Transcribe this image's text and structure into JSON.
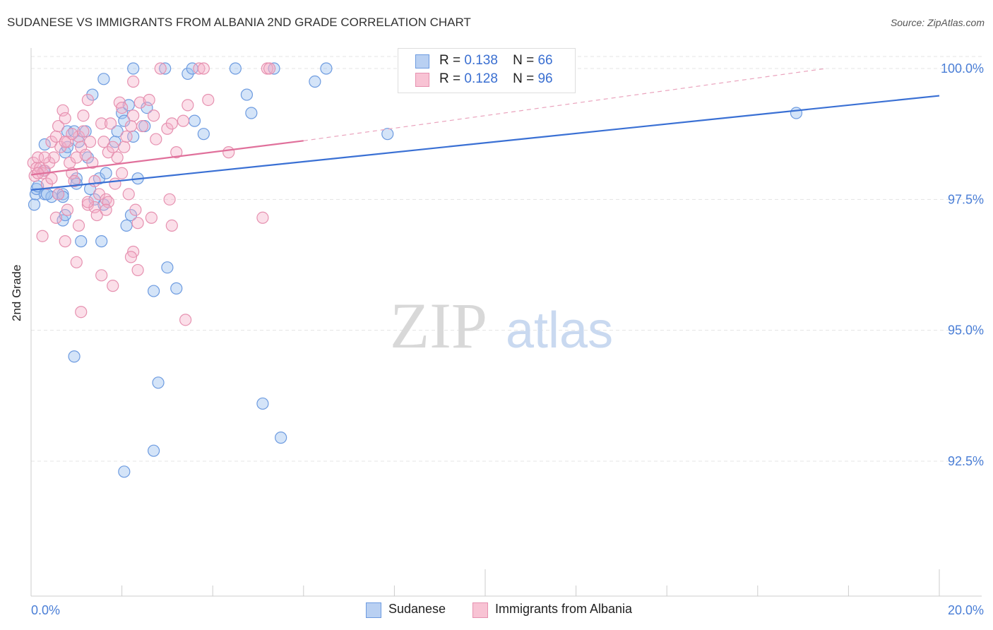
{
  "title": "SUDANESE VS IMMIGRANTS FROM ALBANIA 2ND GRADE CORRELATION CHART",
  "source": "Source: ZipAtlas.com",
  "watermark": {
    "zip": "ZIP",
    "atlas": "atlas"
  },
  "stats": [
    {
      "r_label": "R =",
      "r_value": "0.138",
      "n_label": "N =",
      "n_value": "66",
      "fill": "#b9d0f2",
      "stroke": "#6d9be0"
    },
    {
      "r_label": "R =",
      "r_value": "0.128",
      "n_label": "N =",
      "n_value": "96",
      "fill": "#f8c3d4",
      "stroke": "#e691b0"
    }
  ],
  "legend": [
    {
      "label": "Sudanese",
      "fill": "#b9d0f2",
      "stroke": "#6d9be0"
    },
    {
      "label": "Immigrants from Albania",
      "fill": "#f8c3d4",
      "stroke": "#e691b0"
    }
  ],
  "chart_data": {
    "type": "scatter",
    "xlabel": "",
    "ylabel": "2nd Grade",
    "xlim": [
      0,
      20
    ],
    "ylim": [
      90.0,
      100.35
    ],
    "x_tick_labels": [
      "0.0%",
      "20.0%"
    ],
    "y_ticks": [
      {
        "value": 100.0,
        "label": "100.0%"
      },
      {
        "value": 97.5,
        "label": "97.5%"
      },
      {
        "value": 95.0,
        "label": "95.0%"
      },
      {
        "value": 92.5,
        "label": "92.5%"
      }
    ],
    "grid": true,
    "series": [
      {
        "name": "Sudanese",
        "color": "#5b8dd9",
        "trend": {
          "x0": 0.0,
          "y0": 97.68,
          "x1": 20.0,
          "y1": 99.48
        },
        "points": [
          [
            0.07,
            97.4
          ],
          [
            0.1,
            97.6
          ],
          [
            0.12,
            97.7
          ],
          [
            0.15,
            97.75
          ],
          [
            0.3,
            97.6
          ],
          [
            0.28,
            98.05
          ],
          [
            0.3,
            98.55
          ],
          [
            0.45,
            97.55
          ],
          [
            0.35,
            97.6
          ],
          [
            0.6,
            97.6
          ],
          [
            0.7,
            97.6
          ],
          [
            0.75,
            98.4
          ],
          [
            0.8,
            98.5
          ],
          [
            0.8,
            98.8
          ],
          [
            0.95,
            98.8
          ],
          [
            1.05,
            98.6
          ],
          [
            1.25,
            98.3
          ],
          [
            1.2,
            98.8
          ],
          [
            1.3,
            97.7
          ],
          [
            1.0,
            97.9
          ],
          [
            1.4,
            97.5
          ],
          [
            1.5,
            97.9
          ],
          [
            1.6,
            97.4
          ],
          [
            1.65,
            98.0
          ],
          [
            1.85,
            98.6
          ],
          [
            1.9,
            98.8
          ],
          [
            2.0,
            99.15
          ],
          [
            2.05,
            99.0
          ],
          [
            2.15,
            99.3
          ],
          [
            2.25,
            98.7
          ],
          [
            2.5,
            98.9
          ],
          [
            2.55,
            99.25
          ],
          [
            2.35,
            97.9
          ],
          [
            2.2,
            97.2
          ],
          [
            2.1,
            97.0
          ],
          [
            1.55,
            96.7
          ],
          [
            1.1,
            96.7
          ],
          [
            0.7,
            97.1
          ],
          [
            0.75,
            97.2
          ],
          [
            1.35,
            99.5
          ],
          [
            1.6,
            99.8
          ],
          [
            2.25,
            100.0
          ],
          [
            2.95,
            100.0
          ],
          [
            3.45,
            99.9
          ],
          [
            3.55,
            100.0
          ],
          [
            4.5,
            100.0
          ],
          [
            4.75,
            99.5
          ],
          [
            4.85,
            99.15
          ],
          [
            3.6,
            99.0
          ],
          [
            3.8,
            98.75
          ],
          [
            5.35,
            100.0
          ],
          [
            6.25,
            99.75
          ],
          [
            6.5,
            100.0
          ],
          [
            7.85,
            98.75
          ],
          [
            16.85,
            99.15
          ],
          [
            3.0,
            96.2
          ],
          [
            3.2,
            95.8
          ],
          [
            2.7,
            95.75
          ],
          [
            0.95,
            94.5
          ],
          [
            2.8,
            94.0
          ],
          [
            5.1,
            93.6
          ],
          [
            5.5,
            92.95
          ],
          [
            2.7,
            92.7
          ],
          [
            2.05,
            92.3
          ],
          [
            0.7,
            97.55
          ],
          [
            1.0,
            97.8
          ]
        ]
      },
      {
        "name": "Immigrants from Albania",
        "color": "#e0709b",
        "trend": {
          "x0": 0.0,
          "y0": 97.97,
          "x1": 6.0,
          "y1": 98.62
        },
        "trend_dashed": {
          "x0": 6.0,
          "y0": 98.62,
          "x1": 17.5,
          "y1": 100.0
        },
        "points": [
          [
            0.05,
            98.2
          ],
          [
            0.08,
            97.95
          ],
          [
            0.12,
            98.1
          ],
          [
            0.15,
            98.3
          ],
          [
            0.2,
            98.1
          ],
          [
            0.25,
            98.0
          ],
          [
            0.3,
            98.05
          ],
          [
            0.35,
            97.8
          ],
          [
            0.4,
            98.2
          ],
          [
            0.45,
            98.6
          ],
          [
            0.5,
            98.3
          ],
          [
            0.55,
            98.7
          ],
          [
            0.6,
            98.9
          ],
          [
            0.65,
            98.5
          ],
          [
            0.7,
            99.2
          ],
          [
            0.75,
            99.05
          ],
          [
            0.8,
            98.6
          ],
          [
            0.85,
            98.2
          ],
          [
            0.9,
            98.0
          ],
          [
            0.95,
            97.85
          ],
          [
            1.0,
            98.3
          ],
          [
            1.05,
            98.7
          ],
          [
            1.1,
            98.5
          ],
          [
            1.15,
            98.8
          ],
          [
            1.2,
            98.35
          ],
          [
            1.25,
            97.4
          ],
          [
            1.3,
            98.6
          ],
          [
            1.35,
            98.2
          ],
          [
            1.4,
            97.35
          ],
          [
            1.45,
            97.2
          ],
          [
            1.5,
            97.6
          ],
          [
            1.55,
            98.95
          ],
          [
            1.6,
            98.6
          ],
          [
            1.65,
            97.5
          ],
          [
            1.7,
            98.4
          ],
          [
            1.75,
            98.95
          ],
          [
            1.8,
            98.5
          ],
          [
            1.85,
            97.8
          ],
          [
            1.9,
            98.3
          ],
          [
            1.95,
            99.35
          ],
          [
            2.0,
            99.25
          ],
          [
            2.05,
            98.5
          ],
          [
            2.1,
            98.7
          ],
          [
            2.15,
            97.6
          ],
          [
            2.2,
            98.9
          ],
          [
            2.25,
            99.1
          ],
          [
            2.3,
            97.3
          ],
          [
            2.35,
            97.05
          ],
          [
            2.4,
            99.35
          ],
          [
            2.45,
            98.9
          ],
          [
            2.6,
            99.4
          ],
          [
            2.7,
            99.1
          ],
          [
            2.75,
            98.65
          ],
          [
            2.85,
            100.0
          ],
          [
            3.0,
            98.85
          ],
          [
            3.1,
            98.95
          ],
          [
            3.2,
            98.4
          ],
          [
            3.35,
            99.0
          ],
          [
            3.45,
            99.3
          ],
          [
            3.7,
            100.0
          ],
          [
            3.8,
            100.0
          ],
          [
            3.9,
            99.4
          ],
          [
            4.35,
            98.4
          ],
          [
            5.2,
            100.0
          ],
          [
            5.25,
            100.0
          ],
          [
            2.25,
            99.75
          ],
          [
            1.25,
            99.4
          ],
          [
            1.15,
            99.1
          ],
          [
            0.9,
            98.75
          ],
          [
            0.75,
            98.6
          ],
          [
            0.6,
            97.6
          ],
          [
            0.8,
            97.3
          ],
          [
            1.05,
            97.0
          ],
          [
            0.55,
            97.15
          ],
          [
            1.25,
            97.45
          ],
          [
            1.7,
            97.45
          ],
          [
            2.25,
            96.5
          ],
          [
            2.2,
            96.4
          ],
          [
            2.35,
            96.15
          ],
          [
            1.0,
            96.3
          ],
          [
            1.55,
            96.05
          ],
          [
            1.8,
            95.85
          ],
          [
            2.65,
            97.15
          ],
          [
            3.1,
            97.0
          ],
          [
            3.05,
            97.5
          ],
          [
            5.1,
            97.15
          ],
          [
            0.25,
            96.8
          ],
          [
            0.75,
            96.7
          ],
          [
            1.1,
            95.35
          ],
          [
            3.4,
            95.2
          ],
          [
            0.15,
            98.0
          ],
          [
            0.3,
            98.3
          ],
          [
            0.45,
            97.9
          ],
          [
            1.4,
            97.85
          ],
          [
            1.65,
            97.3
          ],
          [
            2.0,
            98.0
          ]
        ]
      }
    ]
  }
}
